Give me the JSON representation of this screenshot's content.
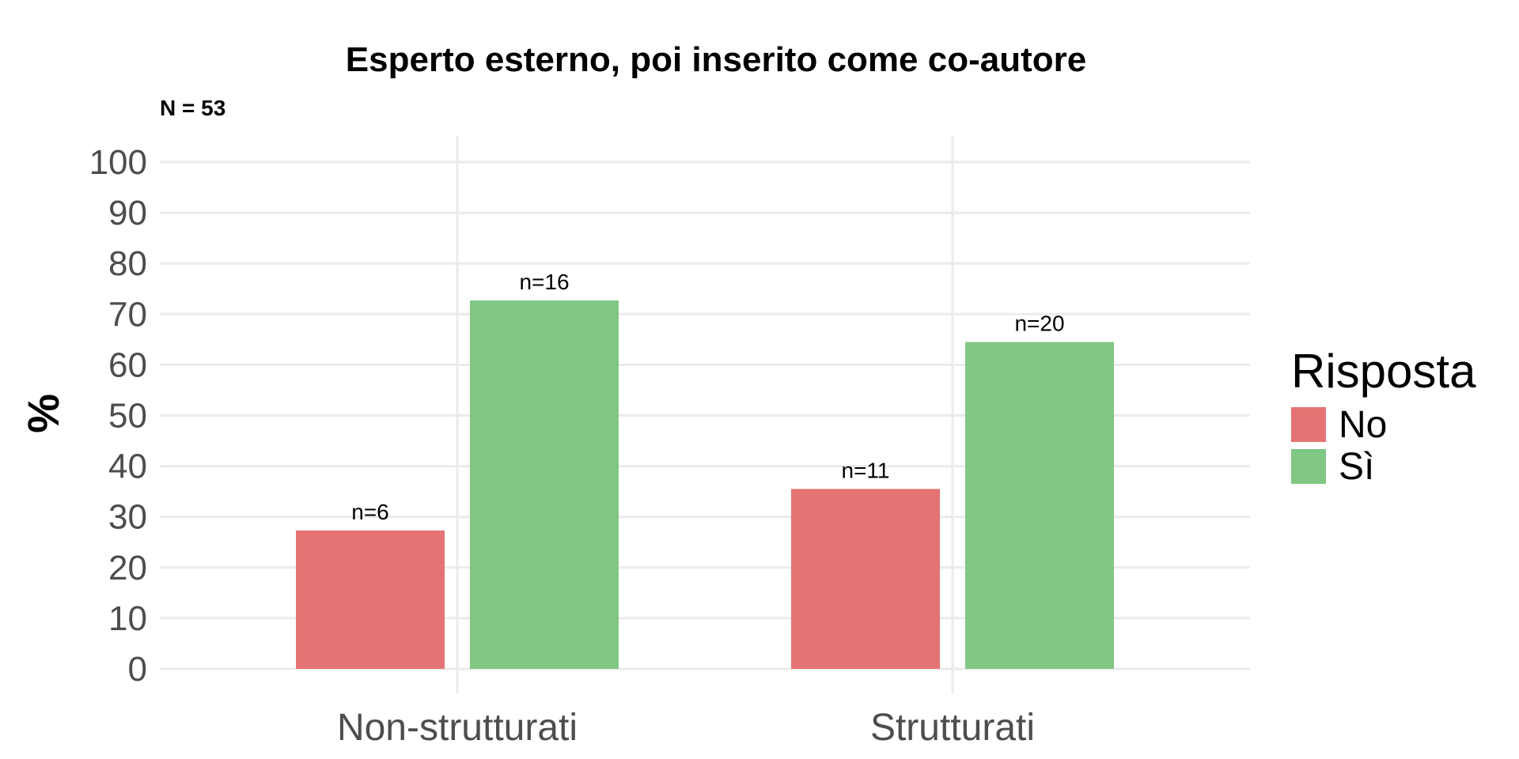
{
  "chart_data": {
    "type": "bar",
    "title": "Esperto esterno, poi inserito come co-autore",
    "subtitle": "N = 53",
    "xlabel": "",
    "ylabel": "%",
    "ylim": [
      0,
      100
    ],
    "yticks": [
      "0",
      "10",
      "20",
      "30",
      "40",
      "50",
      "60",
      "70",
      "80",
      "90",
      "100"
    ],
    "categories": [
      "Non-strutturati",
      "Strutturati"
    ],
    "series": [
      {
        "name": "No",
        "color": "#E57373",
        "values": [
          27.3,
          35.5
        ],
        "labels": [
          "n=6",
          "n=11"
        ]
      },
      {
        "name": "Sì",
        "color": "#81C784",
        "values": [
          72.7,
          64.5
        ],
        "labels": [
          "n=16",
          "n=20"
        ]
      }
    ],
    "legend": {
      "title": "Risposta",
      "position": "right"
    },
    "grid": true
  }
}
